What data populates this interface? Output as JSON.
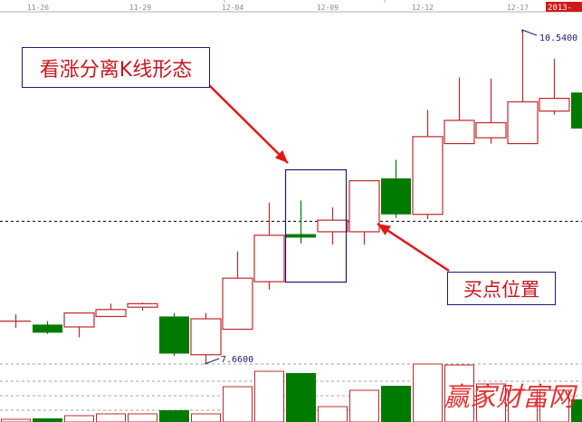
{
  "chart_data": {
    "type": "candlestick",
    "dates_axis": [
      "11-26",
      "11-29",
      "12-04",
      "12-09",
      "12-12",
      "12-17"
    ],
    "year_tag": "2013-",
    "candles": [
      {
        "open": 8.03,
        "close": 8.03,
        "high": 8.09,
        "low": 7.97
      },
      {
        "open": 8.0,
        "close": 7.93,
        "high": 8.03,
        "low": 7.92
      },
      {
        "open": 7.98,
        "close": 8.1,
        "high": 8.1,
        "low": 7.89
      },
      {
        "open": 8.07,
        "close": 8.13,
        "high": 8.18,
        "low": 8.07
      },
      {
        "open": 8.15,
        "close": 8.18,
        "high": 8.19,
        "low": 8.12
      },
      {
        "open": 8.07,
        "close": 7.75,
        "high": 8.1,
        "low": 7.73
      },
      {
        "open": 7.74,
        "close": 8.05,
        "high": 8.1,
        "low": 7.66
      },
      {
        "open": 7.96,
        "close": 8.4,
        "high": 8.63,
        "low": 7.96
      },
      {
        "open": 8.37,
        "close": 8.77,
        "high": 9.05,
        "low": 8.3
      },
      {
        "open": 8.78,
        "close": 8.75,
        "high": 9.07,
        "low": 8.7
      },
      {
        "open": 8.8,
        "close": 8.9,
        "high": 9.01,
        "low": 8.69
      },
      {
        "open": 8.8,
        "close": 9.24,
        "high": 9.24,
        "low": 8.69
      },
      {
        "open": 9.26,
        "close": 8.95,
        "high": 9.42,
        "low": 8.92
      },
      {
        "open": 8.95,
        "close": 9.62,
        "high": 9.85,
        "low": 8.91
      },
      {
        "open": 9.56,
        "close": 9.76,
        "high": 10.13,
        "low": 9.56
      },
      {
        "open": 9.61,
        "close": 9.74,
        "high": 10.12,
        "low": 9.56
      },
      {
        "open": 9.56,
        "close": 9.92,
        "high": 10.54,
        "low": 9.56
      },
      {
        "open": 9.84,
        "close": 9.95,
        "high": 10.29,
        "low": 9.81
      },
      {
        "open": 10.0,
        "close": 9.69,
        "high": 10.0,
        "low": 9.69
      }
    ],
    "volume_relative": [
      3,
      4,
      7,
      9,
      9,
      13,
      9,
      39,
      56,
      54,
      17,
      35,
      40,
      64,
      63,
      42,
      35,
      35,
      25
    ],
    "reference_line_price": 8.89,
    "high_label": "10.5400",
    "low_label": "7.6600",
    "colors": {
      "up": "#c0282d",
      "down": "#007a00",
      "box": "#1a1a7a",
      "arrow": "#e01818"
    }
  },
  "annotations": {
    "pattern_note": "看涨分离K线形态",
    "buy_point_note": "买点位置"
  },
  "watermark": "赢家财富网"
}
